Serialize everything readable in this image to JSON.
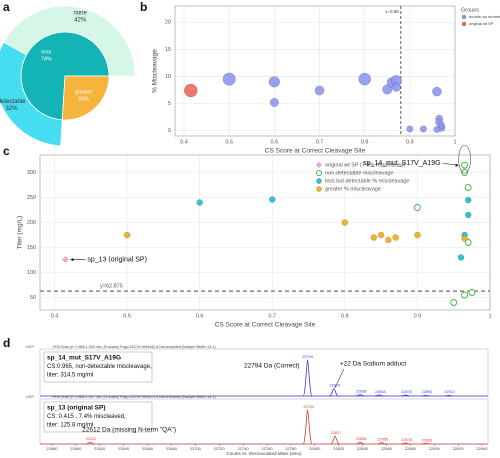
{
  "chart_data": [
    {
      "type": "sunburst",
      "panel_label": "a",
      "inner": {
        "categories": [
          "less",
          "greater"
        ],
        "values": [
          74,
          26
        ],
        "value_labels": [
          "74%",
          "26%"
        ],
        "colors": [
          "#14b3b5",
          "#f5b43c"
        ]
      },
      "outer": {
        "parent": "less",
        "categories": [
          "none",
          "detectable"
        ],
        "values": [
          42,
          32
        ],
        "value_labels": [
          "42%",
          "32%"
        ],
        "colors": [
          "#d6f6e8",
          "#44def0"
        ]
      }
    },
    {
      "type": "scatter",
      "panel_label": "b",
      "xlabel": "CS Score at Correct Cleavage Site",
      "ylabel": "% Miscleavage",
      "xlim": [
        0.38,
        1.0
      ],
      "xticks": [
        0.4,
        0.5,
        0.6,
        0.7,
        0.8,
        0.9,
        1
      ],
      "ylim": [
        -1,
        23
      ],
      "yticks": [
        0,
        5,
        10,
        15,
        20
      ],
      "grid": true,
      "legend_title": "Groups",
      "legend": "outside-right",
      "vline": {
        "value": 0.88,
        "label": "x=0.88"
      },
      "series": [
        {
          "name": "double-aa mutant",
          "color": "#8f97f0",
          "symbol": "circle",
          "x": [
            0.5,
            0.6,
            0.6,
            0.7,
            0.8,
            0.85,
            0.86,
            0.87,
            0.87,
            0.96,
            0.965,
            0.965,
            0.97,
            0.93,
            0.9,
            0.96,
            0.97
          ],
          "values": [
            9.5,
            5.2,
            9,
            7.4,
            9.5,
            7.6,
            8.9,
            9.2,
            8,
            7.2,
            2.2,
            1.5,
            0.5,
            0.3,
            0.3,
            0.2,
            1
          ],
          "sizes": [
            30,
            14,
            22,
            16,
            28,
            18,
            18,
            22,
            14,
            16,
            10,
            10,
            10,
            8,
            8,
            8,
            8
          ]
        },
        {
          "name": "original wt SP",
          "color": "#ef6a5c",
          "symbol": "circle",
          "x": [
            0.415
          ],
          "values": [
            7.4
          ],
          "sizes": [
            32
          ]
        }
      ]
    },
    {
      "type": "scatter",
      "panel_label": "c",
      "xlabel": "CS Score at Correct Cleavage Site",
      "ylabel": "Titer (mg/L)",
      "xlim": [
        0.38,
        1.0
      ],
      "xticks": [
        0.4,
        0.5,
        0.6,
        0.7,
        0.8,
        0.9,
        1
      ],
      "ylim": [
        25,
        335
      ],
      "yticks": [
        50,
        100,
        150,
        200,
        250,
        300
      ],
      "grid": true,
      "legend": "upper-right",
      "hline": {
        "value": 62.875,
        "label": "y=62.875"
      },
      "annotations": [
        {
          "text": "sp_13 (original SP)",
          "x": 0.415,
          "y": 125.8
        },
        {
          "text": "sp_14_mut_S17V_A19G",
          "x": 0.965,
          "y": 314.5
        }
      ],
      "series": [
        {
          "name": "original wt SP (7.4% miscleaved)",
          "color": "#f4a6d8",
          "symbol": "diamond",
          "x": [
            0.415
          ],
          "values": [
            125.8
          ]
        },
        {
          "name": "non-detectable miscleavage",
          "color": "#3cb843",
          "symbol": "open-circle",
          "x": [
            0.965,
            0.965,
            0.97,
            0.9,
            0.97,
            0.95,
            0.965,
            0.975
          ],
          "values": [
            314.5,
            300,
            270,
            230,
            160,
            40,
            55,
            60
          ]
        },
        {
          "name": "less but detectable % miscleavage",
          "color": "#2ec4d6",
          "symbol": "circle",
          "x": [
            0.6,
            0.7,
            0.96,
            0.965,
            0.97,
            0.97
          ],
          "values": [
            240,
            246,
            130,
            175,
            215,
            245
          ]
        },
        {
          "name": "greater % miscleavage",
          "color": "#f2b12e",
          "symbol": "circle",
          "x": [
            0.5,
            0.8,
            0.84,
            0.85,
            0.86,
            0.87,
            0.9,
            0.965
          ],
          "values": [
            175,
            200,
            170,
            175,
            165,
            170,
            175,
            168
          ]
        }
      ]
    },
    {
      "type": "spectrum",
      "panel_label": "d",
      "xlabel": "Counts vs. Deconvoluted Mass (amu)",
      "xlim": [
        22570,
        22945
      ],
      "xticks": [
        22580,
        22600,
        22620,
        22640,
        22660,
        22680,
        22700,
        22720,
        22740,
        22760,
        22780,
        22800,
        22820,
        22840,
        22860,
        22880,
        22900,
        22920,
        22940
      ],
      "traces": [
        {
          "scale": "x10¹",
          "color": "#3a3ad8",
          "ylim": [
            0,
            1
          ],
          "header": "+ESI Scan (rt: 0.984-1.300 min, 20 scans) Frag=215.0V br94442.d  Deconvoluted (Isotope Width=14.1)",
          "box": [
            "sp_14_mut_S17V_A19G",
            "CS:0.965, non-detectable miscleavage,",
            "titer: 314.5 mg/ml"
          ],
          "peaks": {
            "x": [
              22794,
              22816,
              22838,
              22854,
              22876,
              22893,
              22912
            ],
            "values": [
              0.95,
              0.2,
              0.04,
              0.03,
              0.03,
              0.02,
              0.02
            ]
          },
          "annotations": [
            "22794 Da (Correct)",
            "+22 Da Sodium adduct"
          ]
        },
        {
          "scale": "x10¹",
          "color": "#d23a3a",
          "ylim": [
            0,
            1
          ],
          "header": "+ESI Scan (rt: 0.984-1.317 min, 21 scans) Frag=215.0V br94471.d  Deconvoluted (Isotope Width=14.1)",
          "box": [
            "sp_13 (original SP)",
            "CS: 0.415 ,  7.4% miscleaved,",
            "titer: 125.8 mg/ml"
          ],
          "peaks": {
            "x": [
              22612,
              22794,
              22817,
              22838,
              22856,
              22876,
              22893
            ],
            "values": [
              0.05,
              0.95,
              0.22,
              0.05,
              0.04,
              0.03,
              0.02
            ]
          },
          "annotations": [
            "22612 Da (missing N-term \"QA\")"
          ]
        }
      ]
    }
  ]
}
